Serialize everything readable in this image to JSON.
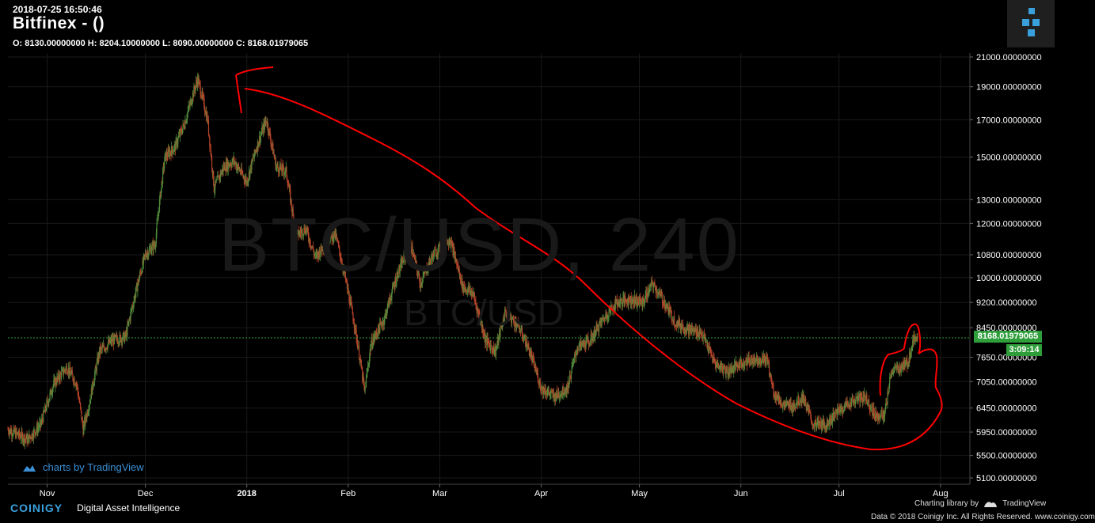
{
  "header": {
    "timestamp": "2018-07-25 16:50:46",
    "title": "Bitfinex -  ()",
    "ohlc": "O: 8130.00000000 H: 8204.10000000 L: 8090.00000000 C: 8168.01979065"
  },
  "watermark": {
    "main": "BTC/USD, 240",
    "sub": "BTC/USD"
  },
  "tv_credit": "charts by TradingView",
  "footer": {
    "brand": "COINIGY",
    "tagline": "Digital Asset Intelligence",
    "charting_lib": "Charting library by",
    "tv_brand": "TradingView",
    "copyright": "Data © 2018   Coinigy Inc. All Rights Reserved. www.coinigy.com"
  },
  "price_tag": "8168.01979065",
  "time_tag": "3:09:14",
  "colors": {
    "up": "#4f8a3a",
    "down": "#b8432a",
    "annotation": "#ff0000",
    "last_price": "#2e9e3a",
    "grid": "#1a1a1a"
  },
  "chart_data": {
    "type": "candlestick",
    "scale": "log",
    "last_price": 8168.01979065,
    "y_ticks": [
      5100,
      5500,
      5950,
      6450,
      7050,
      7650,
      8450,
      9200,
      10000,
      10800,
      12000,
      13000,
      15000,
      17000,
      19000,
      21000
    ],
    "y_tick_labels": [
      "5100.00000000",
      "5500.00000000",
      "5950.00000000",
      "6450.00000000",
      "7050.00000000",
      "7650.00000000",
      "8450.00000000",
      "9200.00000000",
      "10000.00000000",
      "10800.00000000",
      "12000.00000000",
      "13000.00000000",
      "15000.00000000",
      "17000.00000000",
      "19000.00000000",
      "21000.00000000"
    ],
    "x_ticks": [
      {
        "date": "2017-11-01",
        "label": "Nov",
        "bold": false
      },
      {
        "date": "2017-12-01",
        "label": "Dec",
        "bold": false
      },
      {
        "date": "2018-01-01",
        "label": "2018",
        "bold": true
      },
      {
        "date": "2018-02-01",
        "label": "Feb",
        "bold": false
      },
      {
        "date": "2018-03-01",
        "label": "Mar",
        "bold": false
      },
      {
        "date": "2018-04-01",
        "label": "Apr",
        "bold": false
      },
      {
        "date": "2018-05-01",
        "label": "May",
        "bold": false
      },
      {
        "date": "2018-06-01",
        "label": "Jun",
        "bold": false
      },
      {
        "date": "2018-07-01",
        "label": "Jul",
        "bold": false
      },
      {
        "date": "2018-08-01",
        "label": "Aug",
        "bold": false
      }
    ],
    "x_range": [
      "2017-10-20",
      "2018-08-10"
    ],
    "price_path": [
      [
        "2017-10-20",
        6000
      ],
      [
        "2017-10-26",
        5800
      ],
      [
        "2017-10-30",
        6100
      ],
      [
        "2017-11-03",
        7000
      ],
      [
        "2017-11-07",
        7400
      ],
      [
        "2017-11-10",
        7000
      ],
      [
        "2017-11-12",
        6000
      ],
      [
        "2017-11-14",
        6600
      ],
      [
        "2017-11-17",
        7800
      ],
      [
        "2017-11-21",
        8100
      ],
      [
        "2017-11-25",
        8200
      ],
      [
        "2017-11-28",
        9500
      ],
      [
        "2017-12-01",
        10800
      ],
      [
        "2017-12-04",
        11200
      ],
      [
        "2017-12-07",
        15000
      ],
      [
        "2017-12-10",
        15500
      ],
      [
        "2017-12-13",
        16800
      ],
      [
        "2017-12-17",
        19500
      ],
      [
        "2017-12-20",
        17000
      ],
      [
        "2017-12-22",
        13500
      ],
      [
        "2017-12-25",
        14500
      ],
      [
        "2017-12-28",
        14800
      ],
      [
        "2018-01-01",
        13800
      ],
      [
        "2018-01-04",
        15500
      ],
      [
        "2018-01-07",
        17000
      ],
      [
        "2018-01-10",
        14500
      ],
      [
        "2018-01-13",
        14300
      ],
      [
        "2018-01-16",
        11500
      ],
      [
        "2018-01-19",
        11800
      ],
      [
        "2018-01-22",
        10700
      ],
      [
        "2018-01-25",
        11200
      ],
      [
        "2018-01-28",
        11600
      ],
      [
        "2018-02-01",
        9500
      ],
      [
        "2018-02-03",
        8500
      ],
      [
        "2018-02-06",
        6800
      ],
      [
        "2018-02-08",
        8000
      ],
      [
        "2018-02-12",
        8700
      ],
      [
        "2018-02-16",
        10100
      ],
      [
        "2018-02-20",
        11200
      ],
      [
        "2018-02-23",
        9800
      ],
      [
        "2018-02-27",
        10800
      ],
      [
        "2018-03-04",
        11400
      ],
      [
        "2018-03-08",
        9700
      ],
      [
        "2018-03-11",
        9500
      ],
      [
        "2018-03-15",
        8100
      ],
      [
        "2018-03-18",
        7800
      ],
      [
        "2018-03-21",
        8900
      ],
      [
        "2018-03-25",
        8500
      ],
      [
        "2018-03-28",
        7900
      ],
      [
        "2018-04-01",
        6900
      ],
      [
        "2018-04-05",
        6700
      ],
      [
        "2018-04-09",
        6900
      ],
      [
        "2018-04-12",
        7900
      ],
      [
        "2018-04-16",
        8100
      ],
      [
        "2018-04-20",
        8700
      ],
      [
        "2018-04-24",
        9200
      ],
      [
        "2018-04-28",
        9300
      ],
      [
        "2018-05-02",
        9200
      ],
      [
        "2018-05-05",
        9800
      ],
      [
        "2018-05-08",
        9300
      ],
      [
        "2018-05-12",
        8600
      ],
      [
        "2018-05-16",
        8400
      ],
      [
        "2018-05-20",
        8300
      ],
      [
        "2018-05-24",
        7500
      ],
      [
        "2018-05-28",
        7300
      ],
      [
        "2018-06-01",
        7500
      ],
      [
        "2018-06-05",
        7600
      ],
      [
        "2018-06-09",
        7600
      ],
      [
        "2018-06-11",
        6800
      ],
      [
        "2018-06-14",
        6500
      ],
      [
        "2018-06-17",
        6500
      ],
      [
        "2018-06-20",
        6700
      ],
      [
        "2018-06-23",
        6100
      ],
      [
        "2018-06-27",
        6100
      ],
      [
        "2018-07-01",
        6400
      ],
      [
        "2018-07-05",
        6600
      ],
      [
        "2018-07-09",
        6700
      ],
      [
        "2018-07-12",
        6300
      ],
      [
        "2018-07-15",
        6300
      ],
      [
        "2018-07-17",
        7300
      ],
      [
        "2018-07-20",
        7400
      ],
      [
        "2018-07-22",
        7500
      ],
      [
        "2018-07-24",
        8200
      ],
      [
        "2018-07-25",
        8168
      ]
    ]
  }
}
